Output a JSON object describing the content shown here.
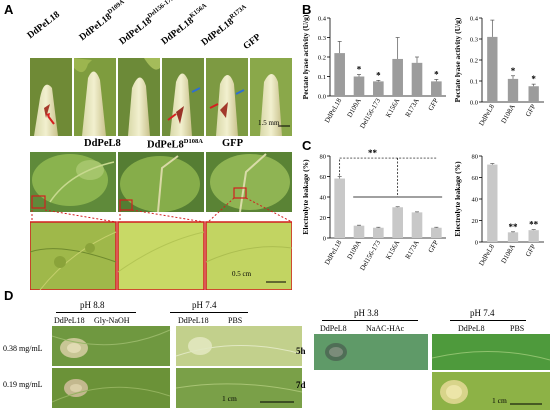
{
  "panels": {
    "a": "A",
    "b": "B",
    "c": "C",
    "d": "D"
  },
  "panel_a": {
    "top_labels": [
      "DdPeL18",
      "DdPeL18",
      "DdPeL18",
      "DdPeL18",
      "DdPeL18",
      "GFP"
    ],
    "top_sups": [
      "",
      "D109A",
      "Del156-173",
      "K156A",
      "R173A",
      ""
    ],
    "scale_top": "1.5 mm",
    "mid_labels": [
      "DdPeL8",
      "DdPeL8",
      "GFP"
    ],
    "mid_sups": [
      "",
      "D108A",
      ""
    ],
    "scale_bottom": "0.5 cm"
  },
  "chart_data": [
    {
      "type": "bar",
      "ylabel": "Pectate lyase activity (U/g)",
      "categories": [
        "DdPeL18",
        "D109A",
        "Del156-173",
        "K156A",
        "R173A",
        "GFP"
      ],
      "values": [
        0.22,
        0.1,
        0.075,
        0.19,
        0.17,
        0.075
      ],
      "errors": [
        0.06,
        0.01,
        0.005,
        0.11,
        0.03,
        0.01
      ],
      "significance": [
        "",
        "*",
        "*",
        "",
        "",
        "*"
      ],
      "ylim": [
        0,
        0.4
      ],
      "yticks": [
        "0.0",
        "0.1",
        "0.2",
        "0.3",
        "0.4"
      ]
    },
    {
      "type": "bar",
      "ylabel": "Pectate lyase activity (U/g)",
      "categories": [
        "DdPeL8",
        "D108A",
        "GFP"
      ],
      "values": [
        0.31,
        0.11,
        0.075
      ],
      "errors": [
        0.08,
        0.015,
        0.01
      ],
      "significance": [
        "",
        "*",
        "*"
      ],
      "ylim": [
        0,
        0.4
      ],
      "yticks": [
        "0.0",
        "0.1",
        "0.2",
        "0.3",
        "0.4"
      ]
    },
    {
      "type": "bar",
      "ylabel": "Electrolyte leakage (%)",
      "categories": [
        "DdPeL18",
        "D109A",
        "Del156-173",
        "K156A",
        "R173A",
        "GFP"
      ],
      "values": [
        58,
        12,
        10,
        30,
        25,
        10
      ],
      "errors": [
        2,
        0.5,
        0.5,
        0.5,
        0.5,
        0.5
      ],
      "significance_label": "**",
      "ylim": [
        0,
        80
      ],
      "yticks": [
        "0",
        "20",
        "40",
        "60",
        "80"
      ]
    },
    {
      "type": "bar",
      "ylabel": "Electrolyte leakage (%)",
      "categories": [
        "DdPeL8",
        "D108A",
        "GFP"
      ],
      "values": [
        72,
        9,
        11
      ],
      "errors": [
        1,
        0.5,
        0.5
      ],
      "significance": [
        "",
        "**",
        "**"
      ],
      "ylim": [
        0,
        80
      ],
      "yticks": [
        "0",
        "20",
        "40",
        "60",
        "80"
      ]
    }
  ],
  "panel_d": {
    "ph_left": [
      "pH 8.8",
      "pH 7.4"
    ],
    "left_labels": [
      "DdPeL18",
      "Gly-NaOH",
      "DdPeL18",
      "PBS"
    ],
    "concentrations": [
      "0.38 mg/mL",
      "0.19 mg/mL"
    ],
    "scale_left": "1 cm",
    "ph_right": [
      "pH 3.8",
      "pH 7.4"
    ],
    "right_labels": [
      "DdPeL8",
      "NaAC-HAc",
      "DdPeL8",
      "PBS"
    ],
    "times": [
      "5h",
      "7d"
    ],
    "scale_right": "1 cm"
  }
}
